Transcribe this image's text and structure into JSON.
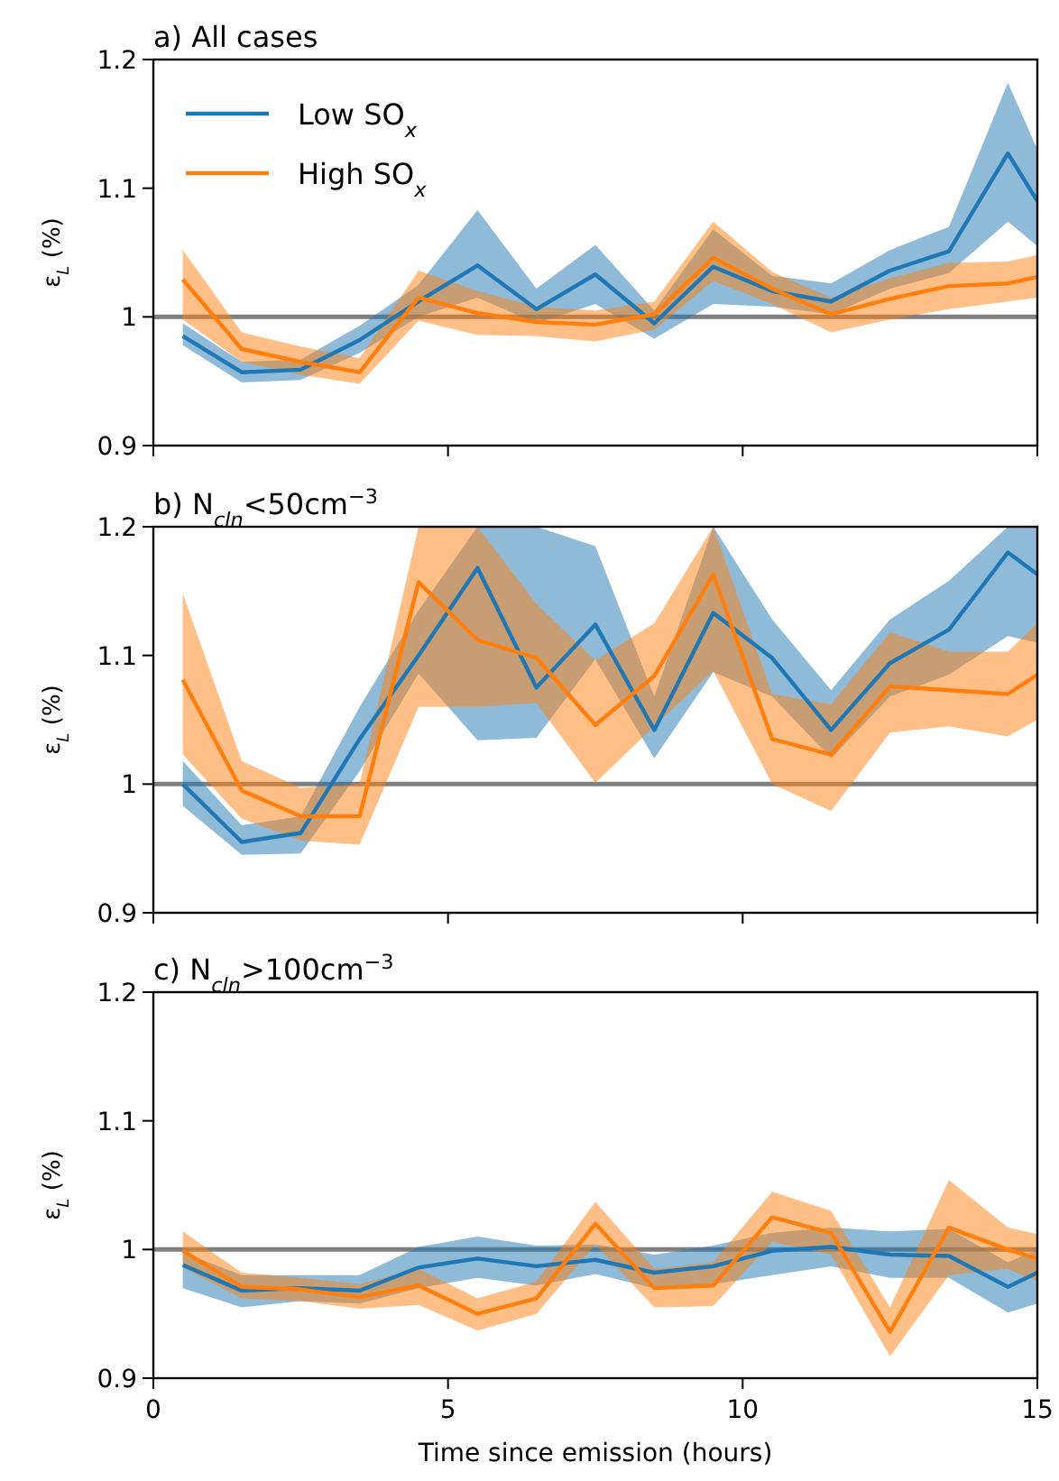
{
  "chart_data": [
    {
      "type": "line",
      "title": "a) All cases",
      "ylabel": "ε$_{L}$ (%)",
      "x": [
        0.5,
        1.5,
        2.5,
        3.5,
        4.5,
        5.5,
        6.5,
        7.5,
        8.5,
        9.5,
        10.5,
        11.5,
        12.5,
        13.5,
        14.5,
        15
      ],
      "xlim": [
        0,
        15
      ],
      "xticks": [
        0,
        5,
        10,
        15
      ],
      "ylim": [
        0.9,
        1.2
      ],
      "yticks": [
        0.9,
        1,
        1.1,
        1.2
      ],
      "tick_labels": "y",
      "legend": "top left",
      "grid": false,
      "line_style": "solid",
      "marker": "none",
      "ref_lines": [
        {
          "axis": "y",
          "value": 1,
          "color": "#808080"
        }
      ],
      "series": [
        {
          "name": "Low SO$_{x}$",
          "color": "#1f77b4",
          "values": [
            0.985,
            0.957,
            0.959,
            0.982,
            1.012,
            1.04,
            1.006,
            1.033,
            0.995,
            1.039,
            1.02,
            1.012,
            1.036,
            1.051,
            1.127,
            1.09
          ],
          "lower": [
            0.978,
            0.949,
            0.951,
            0.972,
            1.0,
            1.015,
            0.995,
            1.01,
            0.983,
            1.01,
            1.008,
            1.002,
            1.022,
            1.034,
            1.074,
            1.055
          ],
          "upper": [
            0.995,
            0.965,
            0.967,
            0.993,
            1.025,
            1.083,
            1.022,
            1.056,
            1.005,
            1.068,
            1.032,
            1.026,
            1.052,
            1.07,
            1.182,
            1.13
          ]
        },
        {
          "name": "High SO$_{x}$",
          "color": "#ff7f0e",
          "values": [
            1.029,
            0.975,
            0.965,
            0.957,
            1.015,
            1.003,
            0.996,
            0.994,
            1.002,
            1.046,
            1.022,
            1.002,
            1.014,
            1.024,
            1.026,
            1.031
          ],
          "lower": [
            0.998,
            0.965,
            0.955,
            0.948,
            0.997,
            0.986,
            0.985,
            0.981,
            0.99,
            1.028,
            1.01,
            0.988,
            0.998,
            1.006,
            1.012,
            1.015
          ],
          "upper": [
            1.052,
            0.988,
            0.977,
            0.968,
            1.036,
            1.02,
            1.008,
            1.005,
            1.012,
            1.074,
            1.035,
            1.015,
            1.03,
            1.042,
            1.043,
            1.048
          ]
        }
      ]
    },
    {
      "type": "line",
      "title": "b) N$_{cln}$<50cm$^{−3}$",
      "ylabel": "ε$_{L}$ (%)",
      "x": [
        0.5,
        1.5,
        2.5,
        3.5,
        4.5,
        5.5,
        6.5,
        7.5,
        8.5,
        9.5,
        10.5,
        11.5,
        12.5,
        13.5,
        14.5,
        15
      ],
      "xlim": [
        0,
        15
      ],
      "xticks": [
        0,
        5,
        10,
        15
      ],
      "ylim": [
        0.9,
        1.2
      ],
      "yticks": [
        0.9,
        1,
        1.1,
        1.2
      ],
      "tick_labels": "y",
      "legend": false,
      "grid": false,
      "line_style": "solid",
      "marker": "none",
      "ref_lines": [
        {
          "axis": "y",
          "value": 1,
          "color": "#808080"
        }
      ],
      "series": [
        {
          "color": "#1f77b4",
          "values": [
            1.0,
            0.955,
            0.962,
            1.035,
            1.1,
            1.168,
            1.075,
            1.124,
            1.042,
            1.133,
            1.098,
            1.042,
            1.094,
            1.12,
            1.18,
            1.163
          ],
          "lower": [
            0.983,
            0.945,
            0.946,
            1.01,
            1.086,
            1.034,
            1.036,
            1.097,
            1.02,
            1.087,
            1.068,
            1.02,
            1.068,
            1.085,
            1.115,
            1.11
          ],
          "upper": [
            1.018,
            0.968,
            0.975,
            1.06,
            1.135,
            1.2,
            1.2,
            1.185,
            1.068,
            1.2,
            1.128,
            1.073,
            1.128,
            1.158,
            1.2,
            1.2
          ]
        },
        {
          "color": "#ff7f0e",
          "values": [
            1.081,
            0.995,
            0.975,
            0.975,
            1.157,
            1.112,
            1.098,
            1.046,
            1.084,
            1.163,
            1.035,
            1.023,
            1.076,
            1.073,
            1.07,
            1.085
          ],
          "lower": [
            1.023,
            0.973,
            0.956,
            0.953,
            1.06,
            1.06,
            1.063,
            1.001,
            1.045,
            1.088,
            1.0,
            0.979,
            1.04,
            1.045,
            1.037,
            1.05
          ],
          "upper": [
            1.148,
            1.018,
            0.997,
            1.0,
            1.2,
            1.2,
            1.14,
            1.096,
            1.125,
            1.2,
            1.07,
            1.062,
            1.118,
            1.103,
            1.103,
            1.125
          ]
        }
      ]
    },
    {
      "type": "line",
      "title": "c) N$_{cln}$>100cm$^{−3}$",
      "ylabel": "ε$_{L}$ (%)",
      "xlabel": "Time since emission (hours)",
      "x": [
        0.5,
        1.5,
        2.5,
        3.5,
        4.5,
        5.5,
        6.5,
        7.5,
        8.5,
        9.5,
        10.5,
        11.5,
        12.5,
        13.5,
        14.5,
        15
      ],
      "xlim": [
        0,
        15
      ],
      "xticks": [
        0,
        5,
        10,
        15
      ],
      "ylim": [
        0.9,
        1.2
      ],
      "yticks": [
        0.9,
        1,
        1.1,
        1.2
      ],
      "legend": false,
      "grid": false,
      "line_style": "solid",
      "marker": "none",
      "ref_lines": [
        {
          "axis": "y",
          "value": 1,
          "color": "#808080"
        }
      ],
      "series": [
        {
          "color": "#1f77b4",
          "values": [
            0.988,
            0.968,
            0.97,
            0.968,
            0.986,
            0.993,
            0.987,
            0.992,
            0.982,
            0.987,
            0.999,
            1.002,
            0.996,
            0.995,
            0.971,
            0.982
          ],
          "lower": [
            0.97,
            0.955,
            0.96,
            0.958,
            0.97,
            0.978,
            0.972,
            0.981,
            0.97,
            0.973,
            0.98,
            0.987,
            0.978,
            0.978,
            0.951,
            0.958
          ],
          "upper": [
            0.998,
            0.98,
            0.98,
            0.98,
            1.002,
            1.01,
            1.003,
            1.004,
            0.996,
            1.003,
            1.013,
            1.017,
            1.014,
            1.016,
            0.99,
            1.0
          ]
        },
        {
          "color": "#ff7f0e",
          "values": [
            0.999,
            0.971,
            0.969,
            0.963,
            0.972,
            0.95,
            0.962,
            1.02,
            0.97,
            0.972,
            1.025,
            1.013,
            0.936,
            1.017,
            1.0,
            0.993
          ],
          "lower": [
            0.986,
            0.962,
            0.96,
            0.954,
            0.957,
            0.937,
            0.95,
            1.004,
            0.955,
            0.956,
            1.006,
            0.996,
            0.917,
            0.98,
            0.985,
            0.975
          ],
          "upper": [
            1.014,
            0.982,
            0.978,
            0.973,
            0.985,
            0.962,
            0.975,
            1.037,
            0.985,
            0.99,
            1.045,
            1.03,
            0.955,
            1.054,
            1.017,
            1.012
          ]
        }
      ]
    }
  ]
}
